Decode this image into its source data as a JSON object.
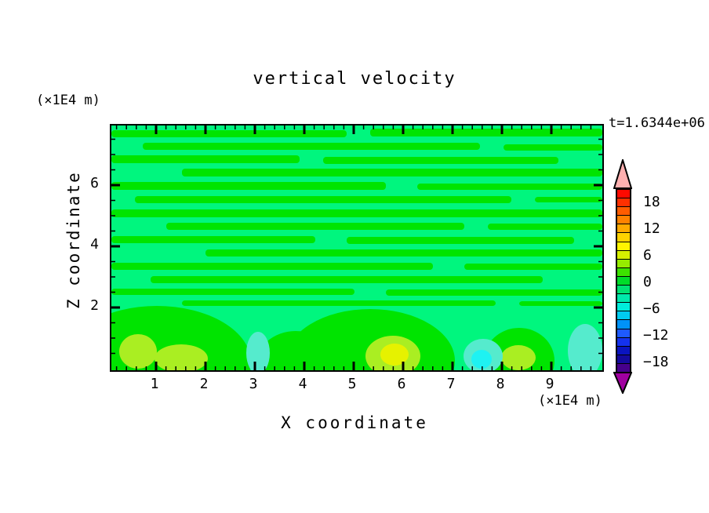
{
  "chart_data": {
    "type": "contour",
    "title": "vertical velocity",
    "time_annotation": "t=1.6344e+06",
    "xlabel": "X coordinate",
    "x_unit": "(×1E4 m)",
    "ylabel": "Z coordinate",
    "y_unit": "(×1E4 m)",
    "x_range": [
      0.1,
      10.0
    ],
    "z_range": [
      0.0,
      7.95
    ],
    "x_major_ticks": [
      1,
      2,
      3,
      4,
      5,
      6,
      7,
      8,
      9
    ],
    "x_minor_step": 0.2,
    "z_major_ticks": [
      2,
      4,
      6
    ],
    "z_minor_step": 0.5,
    "grid": false,
    "colorbar": {
      "labeled_levels": [
        "18",
        "12",
        "6",
        "0",
        "−6",
        "−12",
        "−18"
      ],
      "labeled_values": [
        18,
        12,
        6,
        0,
        -6,
        -12,
        -18
      ],
      "level_step": 2,
      "segment_colors": [
        "#FF0A00",
        "#FF3000",
        "#FF5C00",
        "#FF8200",
        "#FFAA00",
        "#FFD200",
        "#FFF400",
        "#D6F000",
        "#96EC00",
        "#3CE200",
        "#00DC28",
        "#00E272",
        "#00E9AC",
        "#00EDDB",
        "#00CCF0",
        "#0092F8",
        "#1E5AFF",
        "#1432EE",
        "#0A14C0",
        "#140A9E",
        "#46008C"
      ],
      "over_color": "#FFB0B0",
      "under_color": "#A000A0"
    },
    "field_description": "Weak vertical velocity (−2..+2, green/spring-green) arranged in thin wavy horizontal bands above z≈2; near the bottom boundary localized updraft cells reach +6..+10 (yellow-green/yellow) and small downdraft patches reach −4..−6 (turquoise/cyan).",
    "features": [
      {
        "kind": "updraft",
        "x": 0.6,
        "z": 0.5,
        "peak_value": 6
      },
      {
        "kind": "updraft",
        "x": 1.5,
        "z": 0.35,
        "peak_value": 6
      },
      {
        "kind": "updraft",
        "x": 5.7,
        "z": 0.4,
        "peak_value": 10
      },
      {
        "kind": "updraft",
        "x": 8.3,
        "z": 0.3,
        "peak_value": 6
      },
      {
        "kind": "downdraft",
        "x": 3.0,
        "z": 0.45,
        "peak_value": -4
      },
      {
        "kind": "downdraft",
        "x": 7.5,
        "z": 0.35,
        "peak_value": -6
      },
      {
        "kind": "downdraft",
        "x": 9.6,
        "z": 0.55,
        "peak_value": -4
      }
    ],
    "render": {
      "background_color": "#00F67E",
      "stripe_color": "#00E400",
      "band_color": "#00E400",
      "yellowgreen_color": "#AAEE22",
      "yellow_color": "#E6F200",
      "turquoise_color": "#55EBCD",
      "cyan_color": "#1EF2F2",
      "stripes": [
        [
          0,
          6,
          300,
          9
        ],
        [
          330,
          4,
          296,
          10
        ],
        [
          40,
          22,
          430,
          9
        ],
        [
          500,
          24,
          126,
          8
        ],
        [
          0,
          38,
          240,
          10
        ],
        [
          270,
          40,
          300,
          9
        ],
        [
          90,
          55,
          536,
          10
        ],
        [
          0,
          72,
          350,
          10
        ],
        [
          390,
          74,
          236,
          8
        ],
        [
          30,
          90,
          480,
          9
        ],
        [
          540,
          91,
          86,
          7
        ],
        [
          0,
          107,
          626,
          10
        ],
        [
          70,
          124,
          380,
          9
        ],
        [
          480,
          125,
          146,
          8
        ],
        [
          0,
          141,
          260,
          9
        ],
        [
          300,
          142,
          290,
          9
        ],
        [
          120,
          158,
          506,
          9
        ],
        [
          0,
          175,
          410,
          9
        ],
        [
          450,
          176,
          176,
          8
        ],
        [
          50,
          192,
          500,
          9
        ],
        [
          0,
          208,
          310,
          8
        ],
        [
          350,
          209,
          276,
          8
        ],
        [
          90,
          223,
          400,
          7
        ],
        [
          520,
          224,
          106,
          6
        ]
      ],
      "band_blobs": [
        [
          58,
          302,
          120,
          72
        ],
        [
          235,
          308,
          52,
          46
        ],
        [
          330,
          300,
          108,
          66
        ],
        [
          520,
          300,
          45,
          42
        ]
      ],
      "yellowgreen_blobs": [
        [
          34,
          288,
          24,
          22
        ],
        [
          89,
          297,
          34,
          18
        ],
        [
          359,
          294,
          35,
          26
        ],
        [
          519,
          296,
          22,
          16
        ]
      ],
      "yellow_blobs": [
        [
          361,
          292,
          18,
          14
        ]
      ],
      "turquoise_blobs": [
        [
          187,
          290,
          15,
          27
        ],
        [
          474,
          294,
          25,
          22
        ],
        [
          604,
          287,
          22,
          34
        ]
      ],
      "cyan_blobs": [
        [
          472,
          298,
          13,
          12
        ]
      ]
    }
  }
}
